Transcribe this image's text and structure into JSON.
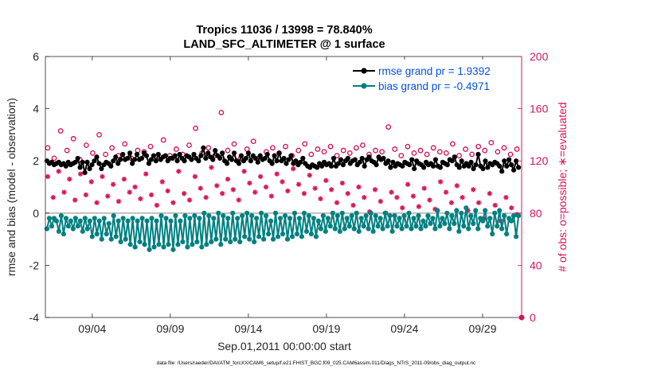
{
  "chart_data": {
    "type": "line",
    "title_line1": "Tropics 11036 / 13998 = 78.840%",
    "title_line2": "LAND_SFC_ALTIMETER @ 1 surface",
    "xlabel": "Sep.01,2011 00:00:00 start",
    "ylabel_left": "rmse and bias (model - observation)",
    "ylabel_right": "# of obs: o=possible; ∗=evaluated",
    "footnote": "data file: /Users/raeder/DAI/ATM_forcXX/CAM6_setup/f.e21.FHIST_BGC.f09_025.CAM6assim.011/Diags_NTrS_2011-09/obs_diag_output.nc",
    "x_start_day": 1,
    "xlim": [
      1,
      31.5
    ],
    "ylim_left": [
      -4,
      6
    ],
    "ylim_right": [
      0,
      200
    ],
    "left_ticks": [
      -4,
      -2,
      0,
      2,
      4,
      6
    ],
    "left_tick_labels": [
      "-4",
      "-2",
      "0",
      "2",
      "4",
      "6"
    ],
    "right_ticks": [
      0,
      40,
      80,
      120,
      160,
      200
    ],
    "right_tick_labels": [
      "0",
      "40",
      "80",
      "120",
      "160",
      "200"
    ],
    "x_ticks": [
      4,
      9,
      14,
      19,
      24,
      29
    ],
    "x_tick_labels": [
      "09/04",
      "09/09",
      "09/14",
      "09/19",
      "09/24",
      "09/29"
    ],
    "colors": {
      "rmse": "#000000",
      "bias": "#008080",
      "obs": "#d6145a",
      "zero_line": "#b3b3b3",
      "legend_text": "#0050e6"
    },
    "series": [
      {
        "name": "rmse grand pr = 1.9392",
        "axis": "left",
        "marker": "filled-circle",
        "values": [
          2.0,
          1.9,
          1.95,
          1.85,
          1.9,
          1.95,
          1.85,
          1.9,
          1.8,
          1.95,
          1.85,
          1.9,
          1.95,
          2.1,
          1.75,
          1.95,
          1.55,
          1.95,
          1.7,
          1.85,
          2.0,
          2.15,
          1.9,
          1.7,
          1.85,
          1.95,
          1.9,
          1.8,
          2.0,
          2.15,
          1.9,
          2.05,
          2.25,
          2.05,
          2.1,
          2.3,
          1.9,
          2.05,
          2.25,
          2.05,
          2.1,
          2.3,
          2.2,
          1.9,
          2.05,
          2.2,
          2.0,
          2.25,
          2.05,
          2.15,
          2.2,
          2.0,
          2.1,
          2.1,
          2.2,
          2.0,
          2.25,
          2.1,
          2.0,
          2.2,
          2.15,
          2.05,
          2.25,
          2.1,
          2.0,
          2.2,
          2.5,
          2.1,
          2.3,
          2.15,
          2.05,
          2.4,
          2.2,
          2.1,
          2.3,
          2.0,
          1.9,
          2.15,
          2.05,
          2.3,
          2.0,
          1.9,
          2.2,
          2.0,
          2.1,
          2.3,
          2.0,
          2.2,
          2.1,
          1.95,
          2.2,
          2.05,
          2.1,
          2.25,
          2.0,
          1.9,
          2.2,
          2.0,
          2.3,
          2.0,
          2.1,
          1.9,
          2.05,
          2.2,
          1.9,
          2.0,
          1.85,
          1.95,
          2.1,
          1.9,
          1.8,
          1.75,
          1.85,
          1.8,
          1.75,
          1.9,
          1.8,
          1.95,
          1.85,
          1.9,
          1.8,
          2.1,
          1.8,
          1.9,
          2.05,
          1.85,
          2.0,
          2.1,
          1.9,
          2.0,
          2.05,
          1.85,
          1.95,
          2.1,
          1.8,
          2.05,
          2.15,
          2.0,
          1.95,
          1.85,
          2.15,
          2.05,
          2.1,
          1.9,
          2.0,
          1.75,
          1.95,
          1.8,
          1.9,
          1.85,
          1.8,
          1.95,
          1.9,
          1.85,
          2.05,
          1.7,
          2.0,
          1.9,
          1.85,
          1.75,
          1.95,
          1.85,
          1.9,
          1.8,
          2.05,
          1.8,
          1.75,
          1.95,
          1.9,
          1.85,
          2.05,
          2.0,
          2.15,
          1.85,
          1.75,
          2.0,
          1.8,
          1.9,
          1.8,
          1.95,
          1.7,
          1.85,
          2.25,
          1.8,
          1.7,
          2.0,
          1.75,
          1.9,
          1.85,
          1.95,
          1.9,
          1.8,
          1.6,
          2.0,
          1.8,
          2.05,
          1.85,
          1.65,
          2.0,
          1.75
        ]
      },
      {
        "name": "bias grand pr = -0.4971",
        "axis": "left",
        "marker": "filled-circle",
        "values": [
          -0.6,
          -0.2,
          -0.5,
          -0.2,
          -0.3,
          -0.7,
          -0.1,
          -0.8,
          -0.2,
          -0.5,
          -0.3,
          -0.6,
          -0.2,
          -0.5,
          -0.3,
          -0.7,
          -0.2,
          -0.6,
          -0.3,
          -0.9,
          -0.2,
          -0.8,
          -0.3,
          -1.0,
          -0.2,
          -0.8,
          -0.4,
          -1.0,
          -0.1,
          -0.9,
          -0.3,
          -1.1,
          -0.2,
          -1.0,
          -0.3,
          -1.2,
          -0.2,
          -1.3,
          -0.3,
          -1.1,
          -0.2,
          -1.2,
          -0.3,
          -1.4,
          -0.2,
          -1.3,
          -0.3,
          -1.2,
          -0.1,
          -1.3,
          -0.2,
          -1.2,
          -0.3,
          -1.4,
          -0.1,
          -1.2,
          -0.3,
          -1.1,
          -0.1,
          -1.3,
          -0.2,
          -1.2,
          -0.1,
          -1.1,
          -0.2,
          -1.3,
          0.0,
          -1.2,
          -0.1,
          -1.1,
          -0.2,
          -1.0,
          0.0,
          -1.2,
          -0.1,
          -1.0,
          -0.2,
          -1.1,
          0.0,
          -1.0,
          -0.2,
          -1.1,
          -0.1,
          -0.9,
          0.0,
          -1.0,
          -0.1,
          -1.1,
          -0.2,
          -0.9,
          0.0,
          -1.0,
          -0.1,
          -0.8,
          -0.3,
          -1.0,
          0.0,
          -0.9,
          -0.2,
          -0.8,
          -0.1,
          -1.0,
          -0.2,
          -0.9,
          0.0,
          -0.8,
          -0.2,
          -0.9,
          0.0,
          -0.7,
          -0.1,
          -0.8,
          -0.2,
          -0.9,
          -0.3,
          -0.6,
          -0.1,
          -0.7,
          -0.2,
          -0.5,
          0.0,
          -0.6,
          -0.1,
          -0.7,
          0.0,
          -0.6,
          -0.2,
          -0.5,
          -0.1,
          -0.6,
          0.0,
          -0.7,
          -0.2,
          -0.5,
          -0.1,
          -0.6,
          0.0,
          -0.7,
          -0.1,
          -0.5,
          -0.2,
          -0.6,
          0.0,
          -0.5,
          -0.1,
          -0.7,
          -0.1,
          -0.5,
          -0.2,
          -0.6,
          -0.1,
          -0.5,
          0.0,
          -0.6,
          -0.2,
          -0.5,
          -0.1,
          -0.6,
          -0.3,
          -0.5,
          -0.1,
          -0.4,
          -0.2,
          -0.6,
          0.1,
          -0.5,
          -0.2,
          -0.4,
          0.0,
          -0.6,
          -0.1,
          -0.4,
          0.1,
          -0.7,
          0.0,
          -0.5,
          0.2,
          -0.6,
          -0.1,
          -0.4,
          0.1,
          -0.6,
          -0.2,
          -0.3,
          0.1,
          -0.5,
          -0.2,
          -0.8,
          0.0,
          -0.5,
          0.1,
          -0.6,
          -0.1,
          -0.8,
          -0.2,
          -0.3,
          -0.1,
          -0.9,
          -0.1
        ]
      },
      {
        "name": "# of obs possible",
        "axis": "right",
        "marker": "open-circle",
        "values": [
          130,
          122,
          143,
          128,
          137,
          121,
          132,
          126,
          140,
          125,
          130,
          124,
          133,
          122,
          128,
          127,
          131,
          123,
          136,
          124,
          129,
          125,
          132,
          145,
          126,
          130,
          124,
          157,
          128,
          133,
          122,
          129,
          135,
          123,
          127,
          130,
          126,
          131,
          124,
          128,
          133,
          125,
          129,
          127,
          131,
          124,
          128,
          126,
          130,
          132,
          125,
          128,
          127,
          146,
          129,
          124,
          131,
          126,
          128,
          125,
          130,
          127,
          126,
          133,
          124,
          129,
          125,
          131,
          128,
          134,
          127,
          130,
          125,
          129
        ],
        "x_step": 0.4
      },
      {
        "name": "# of obs evaluated",
        "axis": "right",
        "marker": "asterisk",
        "values": [
          108,
          92,
          112,
          96,
          106,
          90,
          110,
          94,
          104,
          88,
          108,
          93,
          102,
          89,
          106,
          96,
          100,
          91,
          110,
          94,
          86,
          104,
          97,
          88,
          112,
          95,
          90,
          108,
          99,
          92,
          115,
          101,
          95,
          106,
          98,
          90,
          112,
          103,
          96,
          108,
          100,
          93,
          110,
          104,
          97,
          114,
          102,
          95,
          109,
          99,
          91,
          105,
          98,
          88,
          103,
          95,
          86,
          100,
          92,
          81,
          98,
          89,
          80,
          96,
          92,
          84,
          102,
          93,
          85,
          99,
          90,
          83,
          104,
          96,
          88,
          101,
          92,
          82,
          98,
          88,
          76,
          95,
          86,
          74,
          92,
          84,
          79
        ],
        "x_step": 0.345
      }
    ]
  }
}
